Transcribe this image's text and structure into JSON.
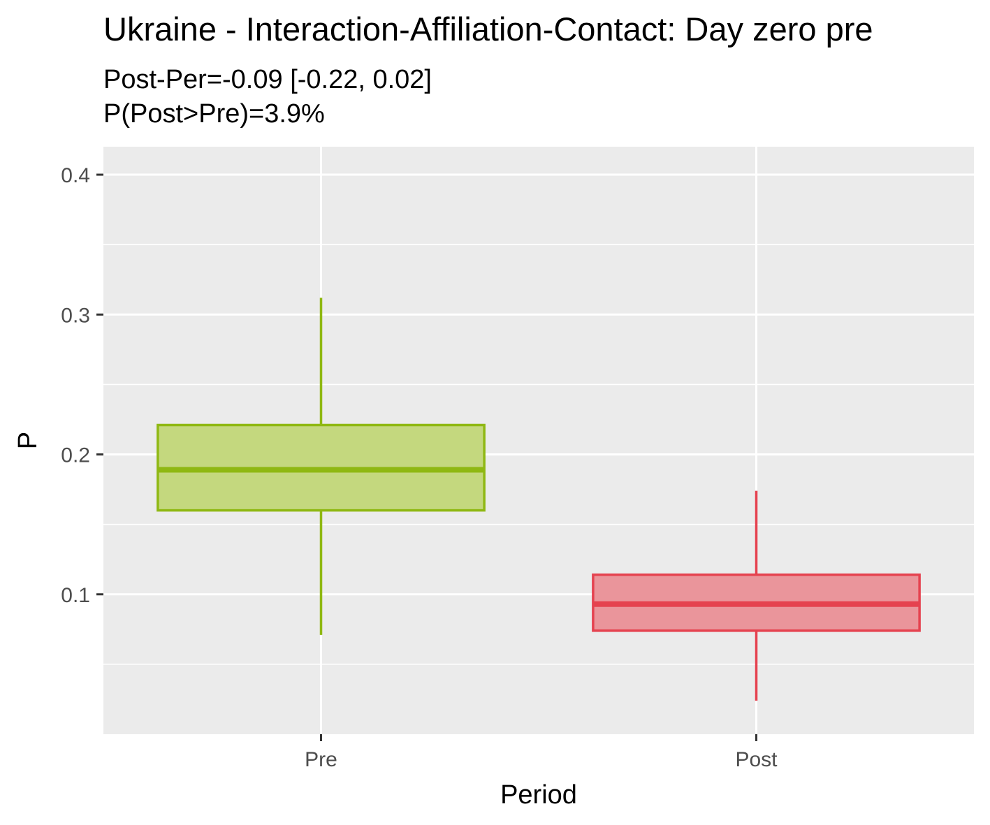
{
  "chart_data": {
    "type": "boxplot",
    "title": "Ukraine - Interaction-Affiliation-Contact: Day zero pre",
    "subtitle_lines": [
      "Post-Per=-0.09 [-0.22, 0.02]",
      "P(Post>Pre)=3.9%"
    ],
    "xlabel": "Period",
    "ylabel": "P",
    "categories": [
      "Pre",
      "Post"
    ],
    "ylim": [
      0.0,
      0.42
    ],
    "y_ticks": [
      0.1,
      0.2,
      0.3,
      0.4
    ],
    "y_tick_labels": [
      "0.1",
      "0.2",
      "0.3",
      "0.4"
    ],
    "boxes": [
      {
        "category": "Pre",
        "whisker_low": 0.071,
        "q1": 0.16,
        "median": 0.189,
        "q3": 0.221,
        "whisker_high": 0.312,
        "color": "#8fb812",
        "fill": "#c4d87e"
      },
      {
        "category": "Post",
        "whisker_low": 0.024,
        "q1": 0.074,
        "median": 0.093,
        "q3": 0.114,
        "whisker_high": 0.174,
        "color": "#e5424f",
        "fill": "#ea959b"
      }
    ],
    "grid": true,
    "panel_background": "#ebebeb",
    "legend": "none"
  }
}
